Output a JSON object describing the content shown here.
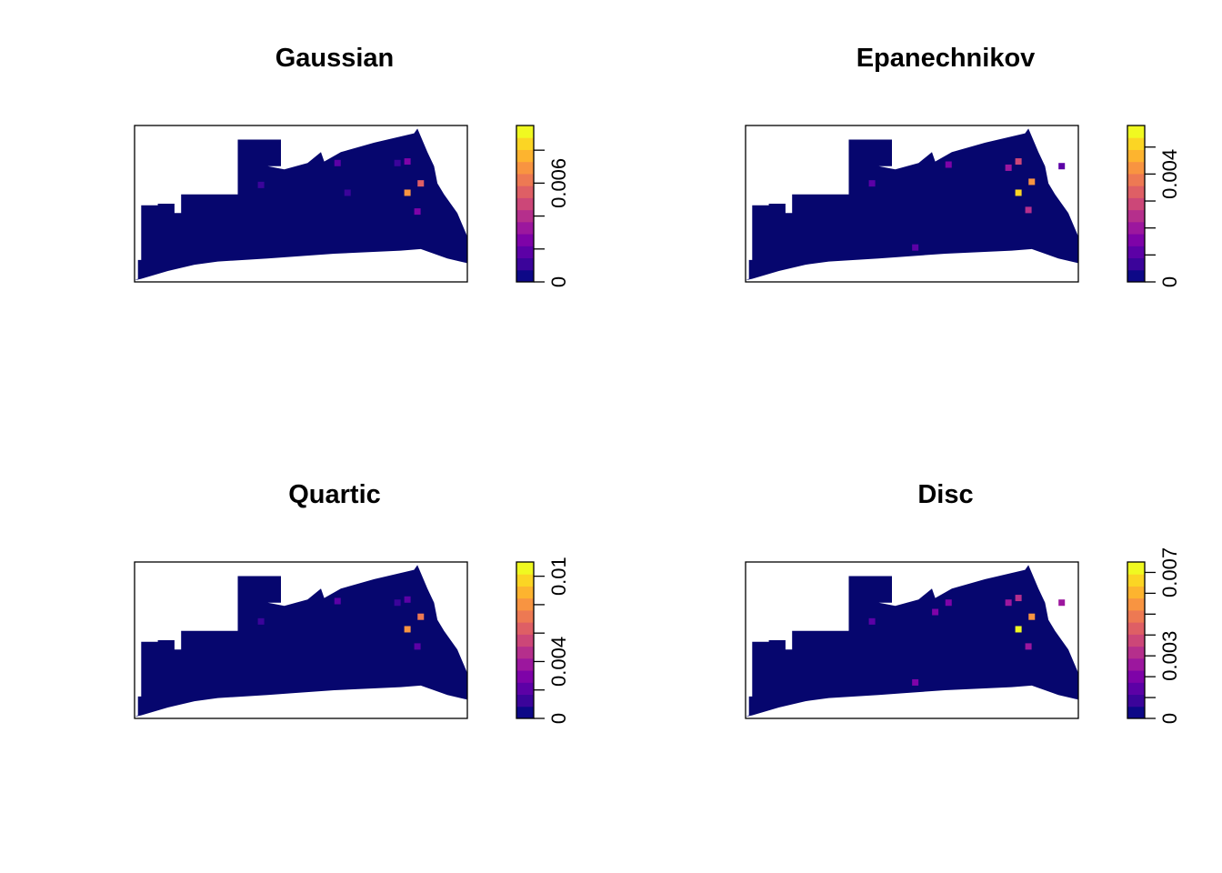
{
  "palette": [
    "#0d0887",
    "#3b049a",
    "#5c01a6",
    "#7e03a8",
    "#9c179e",
    "#b52f8c",
    "#cc4778",
    "#de5f65",
    "#ed7953",
    "#f89441",
    "#fdb42f",
    "#fbd524",
    "#f0f921"
  ],
  "map_fill": "#06066e",
  "chart_data": [
    {
      "type": "heatmap",
      "title": "Gaussian",
      "legend": {
        "position": "right",
        "range": [
          0,
          0.0095
        ],
        "ticks": [
          0,
          0.002,
          0.004,
          0.006,
          0.008
        ],
        "labels": [
          "0",
          "0.006"
        ],
        "label_values": [
          0,
          0.006
        ]
      },
      "hotspots": [
        {
          "x": 0.82,
          "y": 0.43,
          "value": 0.0071
        },
        {
          "x": 0.86,
          "y": 0.37,
          "value": 0.0058
        },
        {
          "x": 0.85,
          "y": 0.55,
          "value": 0.0025
        },
        {
          "x": 0.82,
          "y": 0.23,
          "value": 0.0022
        },
        {
          "x": 0.61,
          "y": 0.24,
          "value": 0.0016
        },
        {
          "x": 0.79,
          "y": 0.24,
          "value": 0.0012
        },
        {
          "x": 0.38,
          "y": 0.38,
          "value": 0.0008
        },
        {
          "x": 0.64,
          "y": 0.43,
          "value": 0.0008
        }
      ]
    },
    {
      "type": "heatmap",
      "title": "Epanechnikov",
      "legend": {
        "position": "right",
        "range": [
          0,
          0.0058
        ],
        "ticks": [
          0,
          0.001,
          0.002,
          0.003,
          0.004,
          0.005
        ],
        "labels": [
          "0",
          "0.004"
        ],
        "label_values": [
          0,
          0.004
        ]
      },
      "hotspots": [
        {
          "x": 0.82,
          "y": 0.43,
          "value": 0.005
        },
        {
          "x": 0.86,
          "y": 0.36,
          "value": 0.0041
        },
        {
          "x": 0.82,
          "y": 0.23,
          "value": 0.0031
        },
        {
          "x": 0.85,
          "y": 0.54,
          "value": 0.0024
        },
        {
          "x": 0.79,
          "y": 0.27,
          "value": 0.0019
        },
        {
          "x": 0.61,
          "y": 0.25,
          "value": 0.0015
        },
        {
          "x": 0.51,
          "y": 0.78,
          "value": 0.0013
        },
        {
          "x": 0.95,
          "y": 0.26,
          "value": 0.0011
        },
        {
          "x": 0.38,
          "y": 0.37,
          "value": 0.0009
        }
      ]
    },
    {
      "type": "heatmap",
      "title": "Quartic",
      "legend": {
        "position": "right",
        "range": [
          0,
          0.011
        ],
        "ticks": [
          0,
          0.002,
          0.004,
          0.006,
          0.008,
          0.01
        ],
        "labels": [
          "0",
          "0.004",
          "0.01"
        ],
        "label_values": [
          0,
          0.004,
          0.01
        ]
      },
      "hotspots": [
        {
          "x": 0.82,
          "y": 0.43,
          "value": 0.0082
        },
        {
          "x": 0.86,
          "y": 0.35,
          "value": 0.0068
        },
        {
          "x": 0.85,
          "y": 0.54,
          "value": 0.0024
        },
        {
          "x": 0.82,
          "y": 0.24,
          "value": 0.0024
        },
        {
          "x": 0.61,
          "y": 0.25,
          "value": 0.0018
        },
        {
          "x": 0.79,
          "y": 0.26,
          "value": 0.0014
        },
        {
          "x": 0.38,
          "y": 0.38,
          "value": 0.0009
        }
      ]
    },
    {
      "type": "heatmap",
      "title": "Disc",
      "legend": {
        "position": "right",
        "range": [
          0,
          0.0075
        ],
        "ticks": [
          0,
          0.001,
          0.002,
          0.003,
          0.004,
          0.005,
          0.006,
          0.007
        ],
        "labels": [
          "0",
          "0.003",
          "0.007"
        ],
        "label_values": [
          0,
          0.003,
          0.007
        ]
      },
      "hotspots": [
        {
          "x": 0.82,
          "y": 0.43,
          "value": 0.0073
        },
        {
          "x": 0.86,
          "y": 0.35,
          "value": 0.0056
        },
        {
          "x": 0.82,
          "y": 0.23,
          "value": 0.003
        },
        {
          "x": 0.85,
          "y": 0.54,
          "value": 0.0028
        },
        {
          "x": 0.79,
          "y": 0.26,
          "value": 0.0026
        },
        {
          "x": 0.95,
          "y": 0.26,
          "value": 0.0024
        },
        {
          "x": 0.61,
          "y": 0.26,
          "value": 0.0022
        },
        {
          "x": 0.51,
          "y": 0.77,
          "value": 0.0021
        },
        {
          "x": 0.57,
          "y": 0.32,
          "value": 0.0018
        },
        {
          "x": 0.38,
          "y": 0.38,
          "value": 0.0012
        }
      ]
    }
  ]
}
